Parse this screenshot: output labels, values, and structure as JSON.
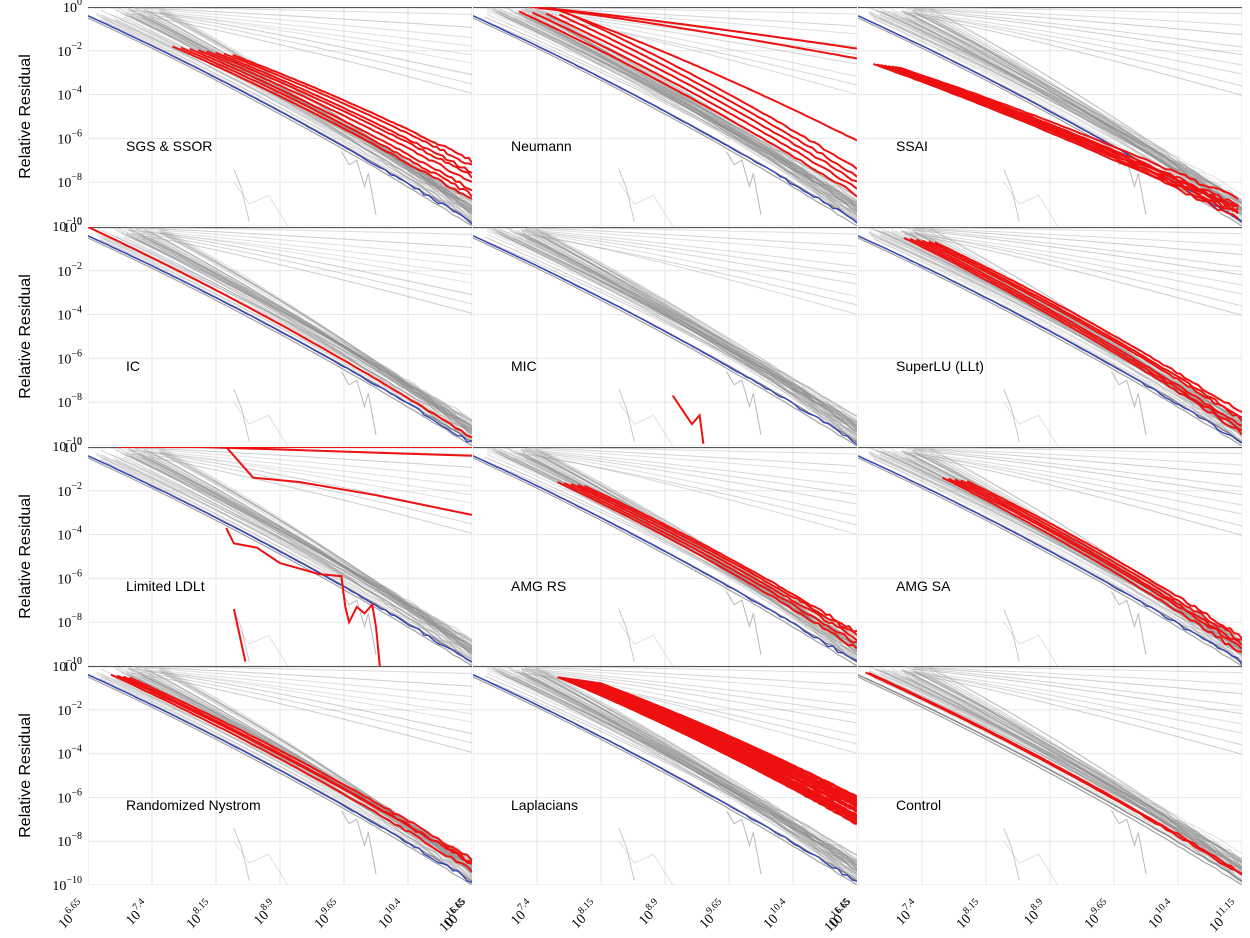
{
  "chart_data": {
    "type": "line",
    "layout": "small-multiples",
    "ylabel": "Relative Residual",
    "yscale": "log",
    "xscale": "log",
    "ylim": [
      1e-10,
      1
    ],
    "yticks": [
      {
        "base": "10",
        "exp": "0"
      },
      {
        "base": "10",
        "exp": "−2"
      },
      {
        "base": "10",
        "exp": "−4"
      },
      {
        "base": "10",
        "exp": "−6"
      },
      {
        "base": "10",
        "exp": "−8"
      },
      {
        "base": "10",
        "exp": "−10"
      }
    ],
    "xticks": [
      {
        "base": "10",
        "exp": "6.65"
      },
      {
        "base": "10",
        "exp": "7.4"
      },
      {
        "base": "10",
        "exp": "8.15"
      },
      {
        "base": "10",
        "exp": "8.9"
      },
      {
        "base": "10",
        "exp": "9.65"
      },
      {
        "base": "10",
        "exp": "10.4"
      },
      {
        "base": "10",
        "exp": "11.15"
      }
    ],
    "grid": true,
    "colors": {
      "highlight": "#ee1111",
      "reference": "#3344bb",
      "background": "#a0a0a0"
    },
    "panels": [
      {
        "title": "SGS & SSOR",
        "pattern": "parallel",
        "n": 8,
        "start": [
          0.22,
          0.18
        ],
        "end": [
          1.0,
          0.88
        ],
        "spread": 0.028,
        "noise": 0.35
      },
      {
        "title": "Neumann",
        "pattern": "neumann",
        "n": 8,
        "start": [
          0.12,
          0.12
        ],
        "end": [
          1.0,
          0.86
        ],
        "spread": 0.03,
        "noise": 0.3
      },
      {
        "title": "SSAI",
        "pattern": "parallel",
        "n": 8,
        "start": [
          0.04,
          0.26
        ],
        "end": [
          0.99,
          0.96
        ],
        "spread": 0.012,
        "noise": 0.55
      },
      {
        "title": "IC",
        "pattern": "parallel",
        "n": 1,
        "start": [
          0.0,
          0.0
        ],
        "end": [
          1.0,
          0.96
        ],
        "spread": 0.0,
        "noise": 0.2
      },
      {
        "title": "MIC",
        "pattern": "fragment",
        "n": 1,
        "start": [
          0.52,
          0.74
        ],
        "end": [
          0.6,
          0.99
        ],
        "spread": 0.0,
        "noise": 0.2
      },
      {
        "title": "SuperLU (LLt)",
        "pattern": "parallel",
        "n": 6,
        "start": [
          0.12,
          0.05
        ],
        "end": [
          1.0,
          0.94
        ],
        "spread": 0.02,
        "noise": 0.4
      },
      {
        "title": "Limited LDLt",
        "pattern": "ldlt",
        "n": 4,
        "start": [
          0.0,
          0.0
        ],
        "end": [
          1.0,
          1.0
        ],
        "spread": 0.0,
        "noise": 0.3
      },
      {
        "title": "AMG RS",
        "pattern": "parallel",
        "n": 5,
        "start": [
          0.22,
          0.16
        ],
        "end": [
          1.0,
          0.92
        ],
        "spread": 0.022,
        "noise": 0.4
      },
      {
        "title": "AMG SA",
        "pattern": "parallel",
        "n": 5,
        "start": [
          0.22,
          0.14
        ],
        "end": [
          1.0,
          0.94
        ],
        "spread": 0.02,
        "noise": 0.45
      },
      {
        "title": "Randomized Nystrom",
        "pattern": "parallel",
        "n": 4,
        "start": [
          0.06,
          0.04
        ],
        "end": [
          1.0,
          0.93
        ],
        "spread": 0.02,
        "noise": 0.45
      },
      {
        "title": "Laplacians",
        "pattern": "band",
        "n": 26,
        "start": [
          0.22,
          0.05
        ],
        "end": [
          1.0,
          0.72
        ],
        "spread": 0.0055,
        "noise": 0.15
      },
      {
        "title": "Control",
        "pattern": "parallel",
        "n": 2,
        "start": [
          0.02,
          0.03
        ],
        "end": [
          1.0,
          0.95
        ],
        "spread": 0.01,
        "noise": 0.35
      }
    ]
  }
}
